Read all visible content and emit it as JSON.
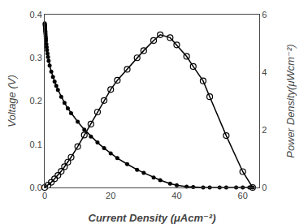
{
  "chart_data": {
    "type": "line",
    "xlabel": "Current Density (μAcm⁻²)",
    "ylabel": "Voltage (V)",
    "y2label": "Power Density(μWcm⁻²)",
    "xlim": [
      0,
      65
    ],
    "xticks": [
      0,
      20,
      40,
      60
    ],
    "ylim": [
      0,
      0.4
    ],
    "yticks": [
      {
        "value": 0.0,
        "label": "0.0"
      },
      0.1,
      0.2,
      0.3,
      0.4
    ],
    "y2lim": [
      0,
      6
    ],
    "y2ticks": [
      0,
      2,
      4,
      6
    ],
    "grid": false,
    "series": [
      {
        "color": "black",
        "marker": "filled",
        "x": [
          0.0,
          0.02,
          0.04,
          0.06,
          0.08,
          0.1,
          0.12,
          0.15,
          0.18,
          0.21,
          0.25,
          0.3,
          0.35,
          0.4,
          0.5,
          0.6,
          0.7,
          0.85,
          1.0,
          1.2,
          1.5,
          2.0,
          2.5,
          3.0,
          3.5,
          4.0,
          5.0,
          6.0,
          7.0,
          8.0,
          10.0,
          12.0,
          14.0,
          16.0,
          18.0,
          20.0,
          22.0,
          25.0,
          28.0,
          30.0,
          33.0,
          35.0,
          38.0,
          40.0,
          43.0,
          45.0,
          48.0,
          50.0,
          53.0,
          55.0,
          58.0,
          60.0,
          62.0,
          63.0
        ],
        "values": [
          0.38,
          0.378,
          0.376,
          0.374,
          0.372,
          0.37,
          0.368,
          0.365,
          0.362,
          0.359,
          0.355,
          0.35,
          0.345,
          0.34,
          0.332,
          0.325,
          0.318,
          0.31,
          0.302,
          0.293,
          0.282,
          0.268,
          0.256,
          0.245,
          0.235,
          0.226,
          0.21,
          0.196,
          0.183,
          0.172,
          0.152,
          0.134,
          0.118,
          0.104,
          0.091,
          0.079,
          0.068,
          0.054,
          0.041,
          0.034,
          0.023,
          0.017,
          0.009,
          0.005,
          0.002,
          0.001,
          0.0,
          0.0,
          0.0,
          0.0,
          0.0,
          0.0,
          0.0,
          0.0
        ]
      },
      {
        "color": "black",
        "marker": "open",
        "axis": "y2",
        "x": [
          0.0,
          1.0,
          2.0,
          3.0,
          4.0,
          5.0,
          6.0,
          7.0,
          8.0,
          10.0,
          12.0,
          14.0,
          16.0,
          18.0,
          20.0,
          22.0,
          25.0,
          28.0,
          30.0,
          33.0,
          35.0,
          38.0,
          40.0,
          43.0,
          45.0,
          48.0,
          50.0,
          55.0,
          60.0,
          63.0
        ],
        "values": [
          0.0,
          0.08,
          0.18,
          0.3,
          0.42,
          0.56,
          0.72,
          0.88,
          1.05,
          1.42,
          1.82,
          2.2,
          2.62,
          3.02,
          3.4,
          3.72,
          4.1,
          4.5,
          4.75,
          5.1,
          5.3,
          5.2,
          4.95,
          4.55,
          4.2,
          3.7,
          3.15,
          1.8,
          0.55,
          0.0
        ]
      }
    ]
  }
}
